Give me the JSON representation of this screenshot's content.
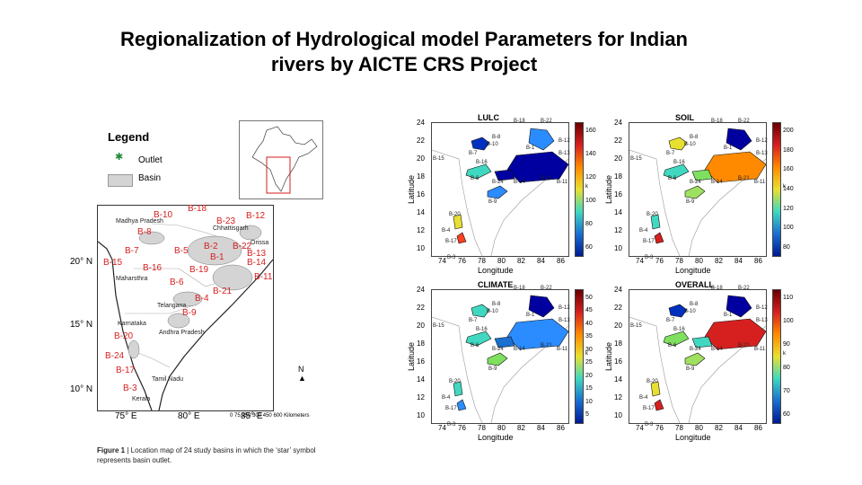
{
  "slide": {
    "title_line1": "Regionalization of Hydrological model Parameters for Indian",
    "title_line2": "rivers by AICTE CRS Project"
  },
  "figure1": {
    "legend": {
      "title": "Legend",
      "outlet": "Outlet",
      "basin": "Basin",
      "star_icon": "star-icon"
    },
    "basin_labels": [
      "B-10",
      "B-18",
      "B-23",
      "B-12",
      "B-8",
      "B-5",
      "B-7",
      "B-2",
      "B-1",
      "B-22",
      "B-13",
      "B-14",
      "B-15",
      "B-16",
      "B-19",
      "B-6",
      "B-11",
      "B-4",
      "B-21",
      "B-9",
      "B-20",
      "B-24",
      "B-17",
      "B-3"
    ],
    "region_labels": [
      "Madhya Pradesh",
      "Chhattisgarh",
      "Orissa",
      "Maharsthra",
      "Telangana",
      "Karnataka",
      "Andhra Pradesh",
      "Tamil Nadu",
      "Kerala"
    ],
    "lat_ticks": [
      "20° N",
      "15° N",
      "10° N"
    ],
    "lon_ticks": [
      "75° E",
      "80° E",
      "85° E"
    ],
    "north": "N",
    "scale_ticks": [
      "0",
      "75",
      "150",
      "300",
      "450",
      "600"
    ],
    "scale_unit": "Kilometers",
    "caption_bold": "Figure 1",
    "caption_text": "Location map of 24 study basins in which the ‘star’ symbol represents basin outlet."
  },
  "panels": [
    {
      "title": "LULC",
      "cbar_ticks": [
        "160",
        "140",
        "120",
        "100",
        "80",
        "60"
      ],
      "colors": [
        "#6a0000",
        "#d62020",
        "#ff8a00",
        "#e8e030",
        "#40d8c0",
        "#1a6fd0",
        "#001a90"
      ]
    },
    {
      "title": "SOIL",
      "cbar_ticks": [
        "200",
        "180",
        "160",
        "140",
        "120",
        "100",
        "80"
      ],
      "colors": [
        "#6a0000",
        "#d62020",
        "#ff8a00",
        "#e8e030",
        "#40d8c0",
        "#1a6fd0",
        "#001a90"
      ]
    },
    {
      "title": "CLIMATE",
      "cbar_ticks": [
        "50",
        "45",
        "40",
        "35",
        "30",
        "25",
        "20",
        "15",
        "10",
        "5"
      ],
      "colors": [
        "#6a0000",
        "#d62020",
        "#ff8a00",
        "#e8e030",
        "#40d8c0",
        "#1a6fd0",
        "#001a90"
      ]
    },
    {
      "title": "OVERALL",
      "cbar_ticks": [
        "110",
        "100",
        "90",
        "80",
        "70",
        "60"
      ],
      "colors": [
        "#6a0000",
        "#d62020",
        "#ff8a00",
        "#e8e030",
        "#40d8c0",
        "#1a6fd0",
        "#001a90"
      ]
    }
  ],
  "axes": {
    "ylabel": "Latitude",
    "xlabel": "Longitude",
    "yticks": [
      "24",
      "22",
      "20",
      "18",
      "16",
      "14",
      "12",
      "10"
    ],
    "xticks": [
      "74",
      "76",
      "78",
      "80",
      "82",
      "84",
      "86"
    ],
    "unit": "k"
  },
  "panel_labels": [
    "B-22",
    "B-18",
    "B-8",
    "B-10",
    "B-12",
    "B-13",
    "B-15",
    "B-7",
    "B-1",
    "B-16",
    "B-6",
    "B-24",
    "B-14",
    "B-21",
    "B-11",
    "B-9",
    "B-20",
    "B-4",
    "B-17",
    "B-3"
  ]
}
